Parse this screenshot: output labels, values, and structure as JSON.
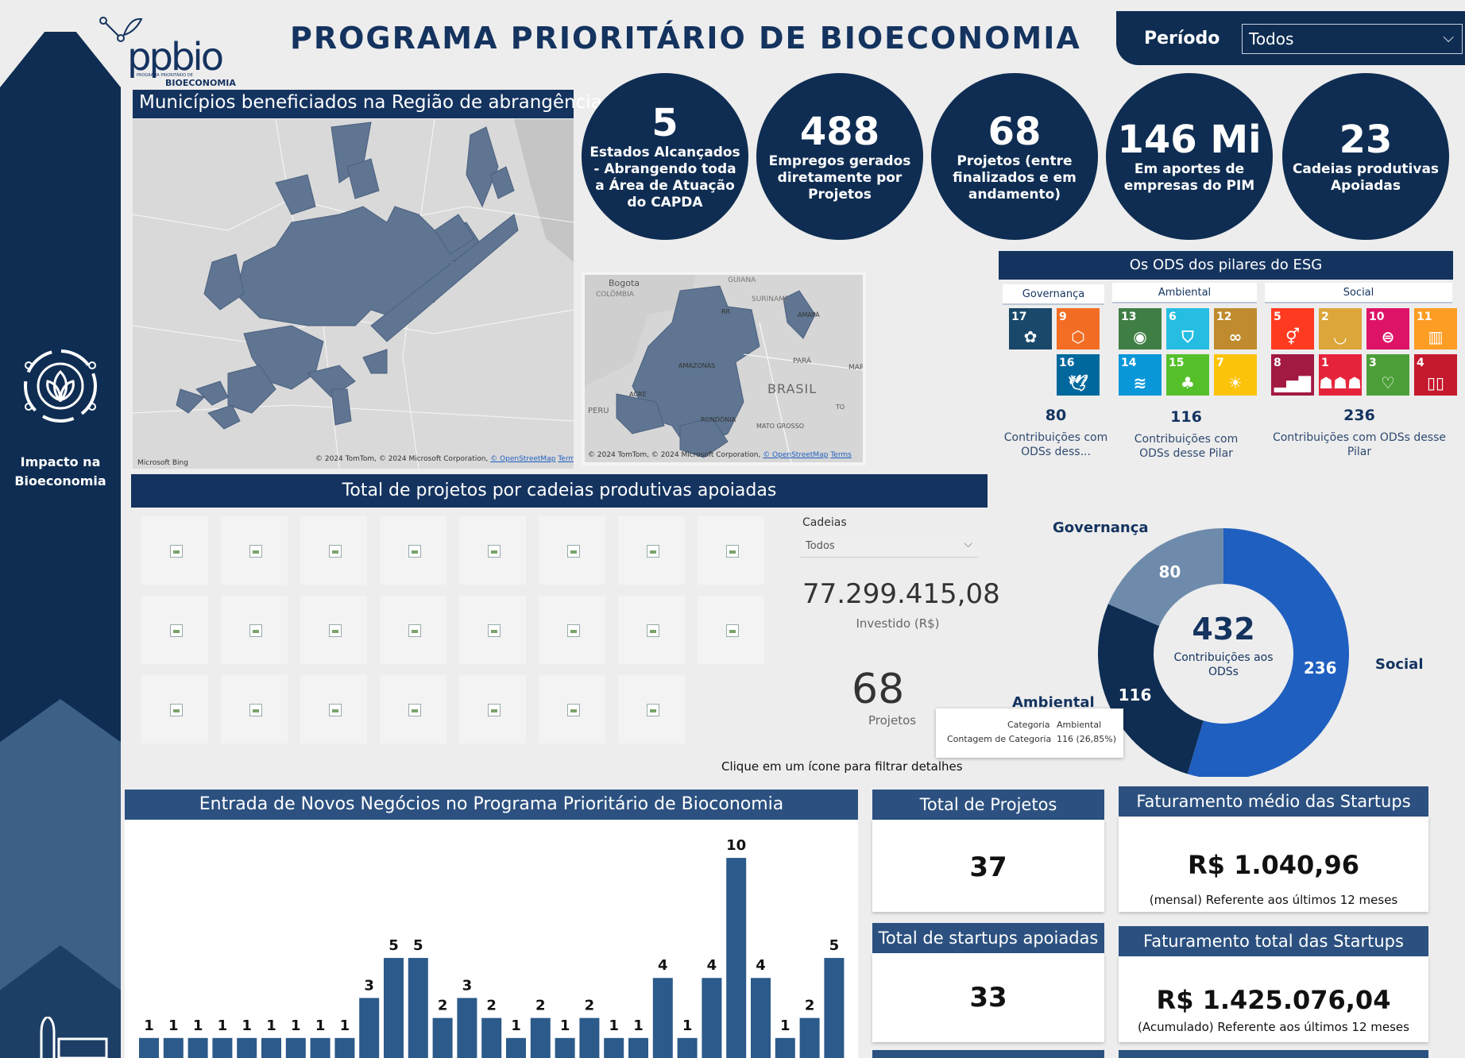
{
  "header": {
    "title": "PROGRAMA PRIORITÁRIO DE BIOECONOMIA",
    "logo_text": "ppbio",
    "logo_sub1": "PROGRAMA PRIORITÁRIO DE",
    "logo_sub2": "BIOECONOMIA",
    "periodo_label": "Período",
    "periodo_value": "Todos"
  },
  "sidebar": {
    "label_line1": "Impacto na",
    "label_line2": "Bioeconomia"
  },
  "map": {
    "title": "Municípios beneficiados na Região de abrangência",
    "credit": "© 2024 TomTom, © 2024 Microsoft Corporation,",
    "osm": "© OpenStreetMap",
    "terms": "Terms",
    "bing": "Microsoft Bing",
    "small_labels": [
      "Bogota",
      "COLÔMBIA",
      "GUIANA",
      "SURINAME",
      "AMAPÁ",
      "RR",
      "AMAZONAS",
      "PARÁ",
      "MAR",
      "BRASIL",
      "ACRE",
      "PERU",
      "RONDÔNIA",
      "TO",
      "MATO GROSSO"
    ]
  },
  "kpis": [
    {
      "value": "5",
      "label": "Estados Alcançados - Abrangendo toda a Área de Atuação do CAPDA"
    },
    {
      "value": "488",
      "label": "Empregos gerados diretamente por Projetos"
    },
    {
      "value": "68",
      "label": "Projetos (entre finalizados e em andamento)"
    },
    {
      "value": "146 Mi",
      "label": "Em aportes de empresas do PIM"
    },
    {
      "value": "23",
      "label": "Cadeias produtivas Apoiadas"
    }
  ],
  "ods": {
    "title": "Os ODS dos pilares do ESG",
    "pillars": [
      {
        "name": "Governança",
        "count": "80",
        "desc": "Contribuições com ODSs dess..."
      },
      {
        "name": "Ambiental",
        "count": "116",
        "desc": "Contribuições com ODSs desse Pilar"
      },
      {
        "name": "Social",
        "count": "236",
        "desc": "Contribuições com ODSs desse Pilar"
      }
    ]
  },
  "cadeias": {
    "title": "Total de projetos por cadeias produtivas apoiadas",
    "filter_label": "Cadeias",
    "filter_value": "Todos",
    "invest_value": "77.299.415,08",
    "invest_label": "Investido (R$)",
    "proj_value": "68",
    "proj_label": "Projetos",
    "hint": "Clique em um ícone para filtrar detalhes"
  },
  "donut": {
    "center_value": "432",
    "center_label1": "Contribuições aos",
    "center_label2": "ODSs",
    "tooltip_k1": "Categoria",
    "tooltip_v1": "Ambiental",
    "tooltip_k2": "Contagem de Categoria",
    "tooltip_v2": "116 (26,85%)"
  },
  "chart_data": {
    "type": "bar",
    "title": "Entrada de Novos Negócios no Programa Prioritário de Bioconomia",
    "values": [
      1,
      1,
      1,
      1,
      1,
      1,
      1,
      1,
      1,
      3,
      5,
      5,
      2,
      3,
      2,
      1,
      2,
      1,
      2,
      1,
      1,
      4,
      1,
      4,
      10,
      4,
      1,
      2,
      5
    ],
    "series_colors": [
      "#2c5a8a"
    ]
  },
  "donut_data": {
    "type": "pie",
    "slices": [
      {
        "name": "Social",
        "value": 236,
        "color": "#1f5fc0"
      },
      {
        "name": "Ambiental",
        "value": 116,
        "color": "#0f2d52"
      },
      {
        "name": "Governança",
        "value": 80,
        "color": "#6f8bab"
      }
    ]
  },
  "cards": {
    "total_projetos_title": "Total de Projetos",
    "total_projetos_value": "37",
    "startups_title": "Total de startups apoiadas",
    "startups_value": "33",
    "fat_medio_title": "Faturamento médio das Startups",
    "fat_medio_value": "R$ 1.040,96",
    "fat_medio_sub": "(mensal) Referente aos últimos 12 meses",
    "fat_total_title": "Faturamento total das Startups",
    "fat_total_value": "R$ 1.425.076,04",
    "fat_total_sub": "(Acumulado) Referente aos últimos 12 meses"
  }
}
